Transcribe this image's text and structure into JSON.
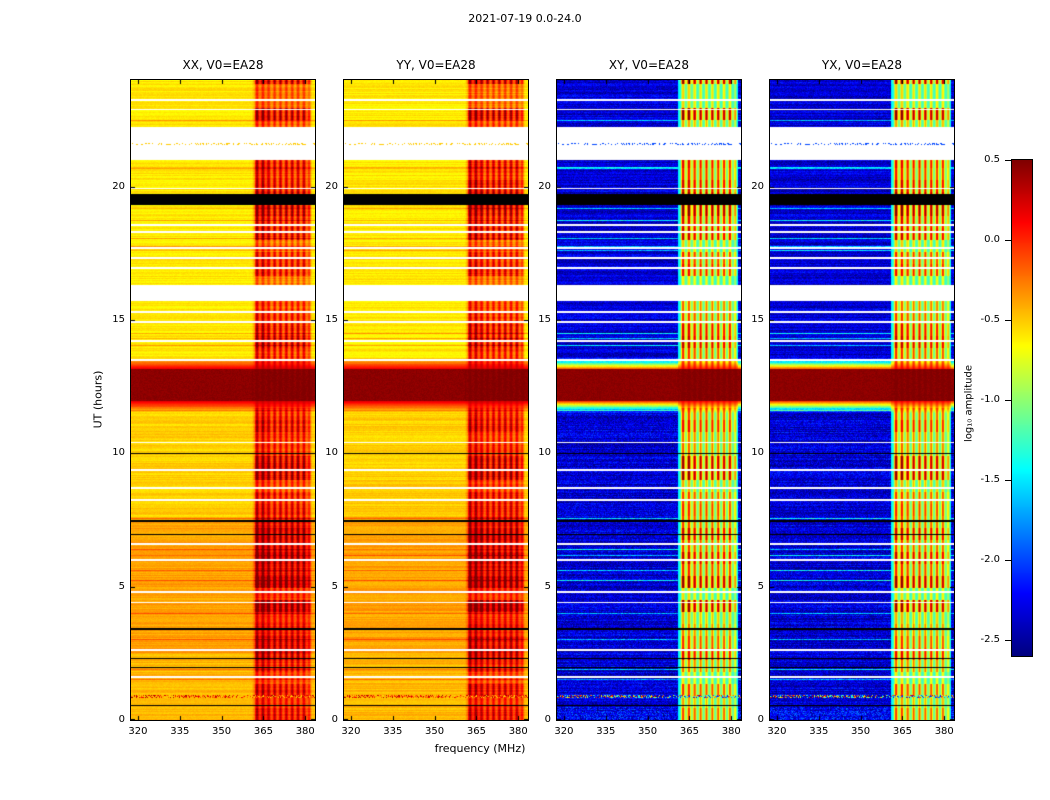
{
  "chart_data": {
    "type": "heatmap",
    "title": "2021-07-19 0.0-24.0",
    "xlabel": "frequency (MHz)",
    "ylabel": "UT (hours)",
    "x_range": [
      317.5,
      383.5
    ],
    "y_range": [
      0,
      24
    ],
    "x_ticks": [
      320,
      335,
      350,
      365,
      380
    ],
    "y_ticks": [
      0,
      5,
      10,
      15,
      20
    ],
    "panels": [
      {
        "id": "xx",
        "title": "XX, V0=EA28",
        "kind": "auto"
      },
      {
        "id": "yy",
        "title": "YY, V0=EA28",
        "kind": "auto"
      },
      {
        "id": "xy",
        "title": "XY, V0=EA28",
        "kind": "cross"
      },
      {
        "id": "yx",
        "title": "YX, V0=EA28",
        "kind": "cross"
      }
    ],
    "colorbar": {
      "label": "log₁₀ amplitude",
      "colormap": "jet",
      "vmin": -2.6,
      "vmax": 0.5,
      "ticks": [
        {
          "v": 0.5,
          "label": "0.5"
        },
        {
          "v": 0.0,
          "label": "0.0"
        },
        {
          "v": -0.5,
          "label": "-0.5"
        },
        {
          "v": -1.0,
          "label": "-1.0"
        },
        {
          "v": -1.5,
          "label": "-1.5"
        },
        {
          "v": -2.0,
          "label": "-2.0"
        },
        {
          "v": -2.5,
          "label": "-2.5"
        }
      ]
    },
    "levels": {
      "auto_zones": [
        {
          "t0": 0,
          "t1": 2.5,
          "base": -0.45
        },
        {
          "t0": 2.5,
          "t1": 7.6,
          "base": -0.38
        },
        {
          "t0": 7.6,
          "t1": 11.5,
          "base": -0.52
        },
        {
          "t0": 11.5,
          "t1": 24,
          "base": -0.6
        }
      ],
      "cross_base": -2.35,
      "rfi_band_mhz": [
        361.0,
        380.5
      ],
      "rfi_strong_subband_mhz": [
        362.0,
        366.5
      ],
      "saturated_value": 0.46
    },
    "events": {
      "white_gaps": [
        [
          23.22,
          23.3
        ],
        [
          22.86,
          22.92
        ],
        [
          21.0,
          22.24
        ],
        [
          19.9,
          19.96
        ],
        [
          18.52,
          18.6
        ],
        [
          18.26,
          18.34
        ],
        [
          17.66,
          17.74
        ],
        [
          17.29,
          17.37
        ],
        [
          16.91,
          16.97
        ],
        [
          15.7,
          16.3
        ],
        [
          15.26,
          15.34
        ],
        [
          14.89,
          14.97
        ],
        [
          14.17,
          14.25
        ],
        [
          13.47,
          13.53
        ],
        [
          10.38,
          10.44
        ],
        [
          9.34,
          9.42
        ],
        [
          8.66,
          8.74
        ],
        [
          8.21,
          8.29
        ],
        [
          6.56,
          6.64
        ],
        [
          5.96,
          6.04
        ],
        [
          4.76,
          4.84
        ],
        [
          4.38,
          4.44
        ],
        [
          2.6,
          2.66
        ],
        [
          1.58,
          1.64
        ]
      ],
      "black_lines": [
        [
          19.3,
          19.72
        ],
        [
          9.97,
          10.03
        ],
        [
          7.44,
          7.5
        ],
        [
          6.93,
          6.99
        ],
        [
          3.38,
          3.44
        ],
        [
          2.27,
          2.33
        ],
        [
          1.94,
          2.0
        ],
        [
          0.51,
          0.57
        ]
      ],
      "saturated_band": [
        11.95,
        13.15
      ],
      "speckle_line": [
        0.82,
        0.95
      ],
      "dotted_line_in_gap": [
        21.55,
        21.63
      ]
    }
  }
}
